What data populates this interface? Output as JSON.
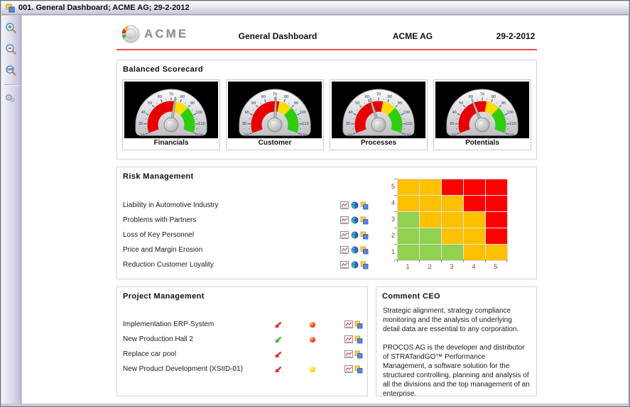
{
  "window": {
    "title": "001. General Dashboard; ACME AG; 29-2-2012"
  },
  "toolbar": {
    "buttons": [
      {
        "name": "zoom-in"
      },
      {
        "name": "zoom-out"
      },
      {
        "name": "zoom-100"
      },
      {
        "name": "settings-gears"
      }
    ]
  },
  "header": {
    "logo_text": "ACME",
    "title": "General Dashboard",
    "company": "ACME AG",
    "date": "29-2-2012"
  },
  "balanced_scorecard": {
    "title": "Balanced Scorecard"
  },
  "risk_management": {
    "title": "Risk Management",
    "row_icons": [
      "chart-icon",
      "pie-icon",
      "cascade-icon"
    ],
    "items": [
      "Liability in Automotive Industry",
      "Problems with Partners",
      "Loss of Key Personnel",
      "Price and Margin Erosion",
      "Reduction Customer Loyality"
    ]
  },
  "project_management": {
    "title": "Project Management",
    "row_icons": [
      "chart-icon",
      "cascade-icon"
    ],
    "items": [
      {
        "name": "Implementation ERP-System",
        "trend": "red",
        "status": "red"
      },
      {
        "name": "New Production Hall 2",
        "trend": "green",
        "status": "red"
      },
      {
        "name": "Replace car pool",
        "trend": "red",
        "status": "none"
      },
      {
        "name": "New Product Development (XSIID-01)",
        "trend": "red",
        "status": "yellow"
      }
    ]
  },
  "comment_ceo": {
    "title": "Comment CEO",
    "paragraphs": [
      "Strategic alignment, strategy compliance monitoring and the analysis of underlying detail data are essential to any corporation.",
      "PROCOS AG is the developer and distributor of STRATandGO™ Performance Management, a software solution for the structured controlling, planning and analysis of all the divisions and the top management of an enterprise."
    ]
  },
  "colors": {
    "accent_rule": "#FB4A4A",
    "axis_label": "#993333",
    "trend_red": "#D93030",
    "trend_green": "#44B234"
  },
  "chart_data": [
    {
      "type": "gauge",
      "title": "Financials",
      "min": 20,
      "max": 120,
      "value": 74,
      "ticks": [
        20,
        30,
        40,
        50,
        60,
        70,
        80,
        90,
        100,
        110,
        120
      ],
      "zones": [
        {
          "from": 20,
          "to": 75,
          "color": "#E60000"
        },
        {
          "from": 75,
          "to": 90,
          "color": "#FFDD00"
        },
        {
          "from": 90,
          "to": 120,
          "color": "#2FCC0F"
        }
      ]
    },
    {
      "type": "gauge",
      "title": "Customer",
      "min": 20,
      "max": 120,
      "value": 71,
      "ticks": [
        20,
        30,
        40,
        50,
        60,
        70,
        80,
        90,
        100,
        110,
        120
      ],
      "zones": [
        {
          "from": 20,
          "to": 75,
          "color": "#E60000"
        },
        {
          "from": 75,
          "to": 90,
          "color": "#FFDD00"
        },
        {
          "from": 90,
          "to": 120,
          "color": "#2FCC0F"
        }
      ]
    },
    {
      "type": "gauge",
      "title": "Processes",
      "min": 20,
      "max": 120,
      "value": 62,
      "ticks": [
        20,
        30,
        40,
        50,
        60,
        70,
        80,
        90,
        100,
        110,
        120
      ],
      "zones": [
        {
          "from": 20,
          "to": 75,
          "color": "#E60000"
        },
        {
          "from": 75,
          "to": 90,
          "color": "#FFDD00"
        },
        {
          "from": 90,
          "to": 120,
          "color": "#2FCC0F"
        }
      ]
    },
    {
      "type": "gauge",
      "title": "Potentials",
      "min": 20,
      "max": 120,
      "value": 60,
      "ticks": [
        20,
        30,
        40,
        50,
        60,
        70,
        80,
        90,
        100,
        110,
        120
      ],
      "zones": [
        {
          "from": 20,
          "to": 75,
          "color": "#E60000"
        },
        {
          "from": 75,
          "to": 90,
          "color": "#FFDD00"
        },
        {
          "from": 90,
          "to": 120,
          "color": "#2FCC0F"
        }
      ]
    },
    {
      "type": "heatmap",
      "title": "Risk Matrix",
      "x_labels": [
        "1",
        "2",
        "3",
        "4",
        "5"
      ],
      "y_labels_top_to_bottom": [
        "5",
        "4",
        "3",
        "2",
        "1"
      ],
      "cell_colors": {
        "g": "#92D050",
        "o": "#FFC000",
        "r": "#FF0000"
      },
      "rows_top_to_bottom": [
        [
          "o",
          "o",
          "r",
          "r",
          "r"
        ],
        [
          "o",
          "o",
          "o",
          "r",
          "r"
        ],
        [
          "g",
          "o",
          "o",
          "o",
          "r"
        ],
        [
          "g",
          "g",
          "o",
          "o",
          "r"
        ],
        [
          "g",
          "g",
          "g",
          "o",
          "o"
        ]
      ]
    }
  ]
}
